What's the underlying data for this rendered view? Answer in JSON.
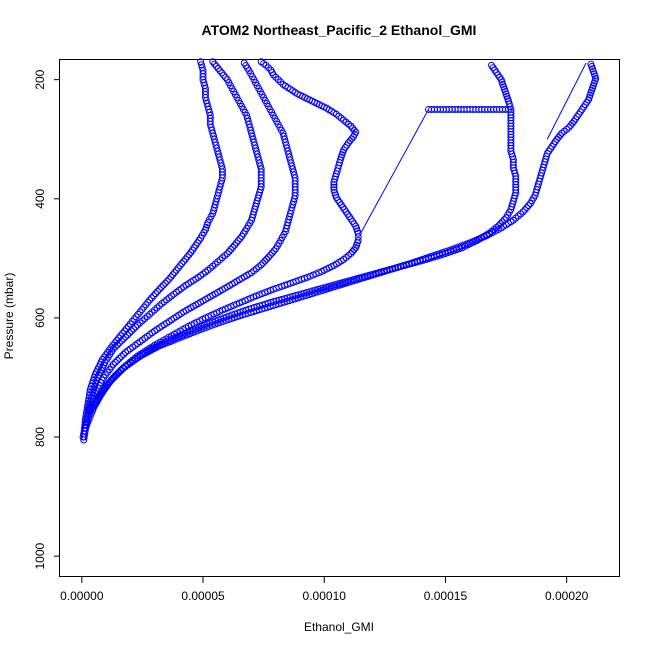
{
  "chart_data": {
    "type": "scatter",
    "title": "ATOM2 Northeast_Pacific_2 Ethanol_GMI",
    "xlabel": "Ethanol_GMI",
    "ylabel": "Pressure (mbar)",
    "xlim": [
      -9e-06,
      0.000222
    ],
    "ylim": [
      1035,
      167
    ],
    "y_reversed": true,
    "x_ticks": [
      0.0,
      5e-05,
      0.0001,
      0.00015,
      0.0002
    ],
    "x_tick_labels": [
      "0.00000",
      "0.00005",
      "0.00010",
      "0.00015",
      "0.00020"
    ],
    "y_ticks": [
      200,
      400,
      600,
      800,
      1000
    ],
    "y_tick_labels": [
      "200",
      "400",
      "600",
      "800",
      "1000"
    ],
    "grid": false,
    "marker": "open-circle",
    "color": "#0000ff",
    "series": [
      {
        "points": [
          [
            5e-07,
            800
          ],
          [
            1e-06,
            790
          ],
          [
            1.5e-06,
            770
          ],
          [
            2.5e-06,
            745
          ],
          [
            3.5e-06,
            720
          ],
          [
            5.5e-06,
            695
          ],
          [
            8.5e-06,
            670
          ],
          [
            1.2e-05,
            650
          ],
          [
            1.6e-05,
            630
          ],
          [
            2e-05,
            610
          ],
          [
            2.4e-05,
            590
          ],
          [
            2.8e-05,
            570
          ],
          [
            3.2e-05,
            552
          ],
          [
            3.6e-05,
            535
          ],
          [
            3.9e-05,
            520
          ],
          [
            4.2e-05,
            505
          ],
          [
            4.5e-05,
            490
          ],
          [
            4.7e-05,
            478
          ],
          [
            4.9e-05,
            466
          ],
          [
            5.1e-05,
            452
          ],
          [
            5.2e-05,
            440
          ],
          [
            5.4e-05,
            425
          ],
          [
            5.5e-05,
            410
          ],
          [
            5.6e-05,
            395
          ],
          [
            5.7e-05,
            380
          ],
          [
            5.8e-05,
            365
          ],
          [
            5.8e-05,
            350
          ],
          [
            5.7e-05,
            335
          ],
          [
            5.6e-05,
            320
          ],
          [
            5.5e-05,
            305
          ],
          [
            5.4e-05,
            290
          ],
          [
            5.3e-05,
            275
          ],
          [
            5.3e-05,
            260
          ],
          [
            5.2e-05,
            245
          ],
          [
            5.1e-05,
            230
          ],
          [
            5.1e-05,
            215
          ],
          [
            5e-05,
            200
          ],
          [
            5e-05,
            185
          ],
          [
            4.9e-05,
            170
          ]
        ]
      },
      {
        "points": [
          [
            8e-07,
            805
          ],
          [
            1.2e-06,
            795
          ],
          [
            2e-06,
            775
          ],
          [
            3e-06,
            750
          ],
          [
            4.5e-06,
            725
          ],
          [
            6.5e-06,
            700
          ],
          [
            9.5e-06,
            675
          ],
          [
            1.3e-05,
            652
          ],
          [
            1.8e-05,
            632
          ],
          [
            2.3e-05,
            612
          ],
          [
            2.8e-05,
            594
          ],
          [
            3.3e-05,
            576
          ],
          [
            3.8e-05,
            560
          ],
          [
            4.3e-05,
            545
          ],
          [
            4.8e-05,
            532
          ],
          [
            5.2e-05,
            520
          ],
          [
            5.6e-05,
            506
          ],
          [
            6e-05,
            492
          ],
          [
            6.3e-05,
            478
          ],
          [
            6.6e-05,
            463
          ],
          [
            6.8e-05,
            450
          ],
          [
            7e-05,
            436
          ],
          [
            7.1e-05,
            422
          ],
          [
            7.2e-05,
            408
          ],
          [
            7.3e-05,
            394
          ],
          [
            7.4e-05,
            380
          ],
          [
            7.4e-05,
            365
          ],
          [
            7.4e-05,
            350
          ],
          [
            7.3e-05,
            335
          ],
          [
            7.2e-05,
            320
          ],
          [
            7.1e-05,
            305
          ],
          [
            7e-05,
            290
          ],
          [
            6.9e-05,
            275
          ],
          [
            6.8e-05,
            260
          ],
          [
            6.6e-05,
            245
          ],
          [
            6.4e-05,
            230
          ],
          [
            6.2e-05,
            215
          ],
          [
            6e-05,
            200
          ],
          [
            5.7e-05,
            185
          ],
          [
            5.4e-05,
            170
          ]
        ]
      },
      {
        "points": [
          [
            1.5e-06,
            780
          ],
          [
            2.5e-06,
            765
          ],
          [
            4e-06,
            745
          ],
          [
            6e-06,
            722
          ],
          [
            9e-06,
            700
          ],
          [
            1.3e-05,
            678
          ],
          [
            1.8e-05,
            658
          ],
          [
            2.4e-05,
            640
          ],
          [
            3e-05,
            622
          ],
          [
            3.6e-05,
            606
          ],
          [
            4.2e-05,
            590
          ],
          [
            4.8e-05,
            576
          ],
          [
            5.4e-05,
            562
          ],
          [
            6e-05,
            548
          ],
          [
            6.5e-05,
            536
          ],
          [
            7e-05,
            524
          ],
          [
            7.4e-05,
            511
          ],
          [
            7.7e-05,
            498
          ],
          [
            8e-05,
            484
          ],
          [
            8.2e-05,
            470
          ],
          [
            8.4e-05,
            455
          ],
          [
            8.5e-05,
            440
          ],
          [
            8.6e-05,
            425
          ],
          [
            8.7e-05,
            410
          ],
          [
            8.8e-05,
            395
          ],
          [
            8.8e-05,
            380
          ],
          [
            8.8e-05,
            365
          ],
          [
            8.7e-05,
            350
          ],
          [
            8.6e-05,
            335
          ],
          [
            8.5e-05,
            320
          ],
          [
            8.4e-05,
            305
          ],
          [
            8.3e-05,
            290
          ],
          [
            8.1e-05,
            275
          ],
          [
            7.9e-05,
            260
          ],
          [
            7.7e-05,
            245
          ],
          [
            7.5e-05,
            230
          ],
          [
            7.3e-05,
            215
          ],
          [
            7.1e-05,
            200
          ],
          [
            6.9e-05,
            185
          ],
          [
            6.7e-05,
            172
          ]
        ]
      },
      {
        "points": [
          [
            1.5e-06,
            785
          ],
          [
            3e-06,
            770
          ],
          [
            5e-06,
            750
          ],
          [
            8e-06,
            728
          ],
          [
            1.2e-05,
            705
          ],
          [
            1.7e-05,
            684
          ],
          [
            2.3e-05,
            664
          ],
          [
            3e-05,
            646
          ],
          [
            3.7e-05,
            630
          ],
          [
            4.4e-05,
            614
          ],
          [
            5.1e-05,
            600
          ],
          [
            5.8e-05,
            587
          ],
          [
            6.5e-05,
            575
          ],
          [
            7.2e-05,
            563
          ],
          [
            7.9e-05,
            552
          ],
          [
            8.6e-05,
            542
          ],
          [
            9.3e-05,
            532
          ],
          [
            9.9e-05,
            522
          ],
          [
            0.000104,
            512
          ],
          [
            0.000108,
            502
          ],
          [
            0.000111,
            492
          ],
          [
            0.000113,
            482
          ],
          [
            0.000114,
            470
          ],
          [
            0.000114,
            458
          ],
          [
            0.000113,
            446
          ],
          [
            0.000111,
            434
          ],
          [
            0.000109,
            422
          ],
          [
            0.000107,
            410
          ],
          [
            0.000105,
            398
          ],
          [
            0.000104,
            385
          ],
          [
            0.000104,
            372
          ],
          [
            0.000105,
            358
          ],
          [
            0.000106,
            344
          ],
          [
            0.000107,
            330
          ],
          [
            0.000108,
            318
          ],
          [
            0.00011,
            306
          ],
          [
            0.000112,
            296
          ],
          [
            0.000113,
            288
          ],
          [
            0.000111,
            278
          ],
          [
            0.000108,
            268
          ],
          [
            0.000105,
            258
          ],
          [
            0.000101,
            248
          ],
          [
            9.7e-05,
            240
          ],
          [
            9.3e-05,
            232
          ],
          [
            8.9e-05,
            224
          ],
          [
            8.6e-05,
            216
          ],
          [
            8.3e-05,
            208
          ],
          [
            8.1e-05,
            200
          ],
          [
            7.9e-05,
            192
          ],
          [
            7.8e-05,
            184
          ],
          [
            7.6e-05,
            176
          ],
          [
            7.4e-05,
            170
          ]
        ]
      },
      {
        "points": [
          [
            3e-06,
            760
          ],
          [
            5e-06,
            745
          ],
          [
            8e-06,
            725
          ],
          [
            1.2e-05,
            705
          ],
          [
            1.7e-05,
            685
          ],
          [
            2.3e-05,
            667
          ],
          [
            3e-05,
            650
          ],
          [
            3.8e-05,
            634
          ],
          [
            4.6e-05,
            620
          ],
          [
            5.4e-05,
            607
          ],
          [
            6.2e-05,
            595
          ],
          [
            7e-05,
            584
          ],
          [
            7.8e-05,
            574
          ],
          [
            8.6e-05,
            565
          ],
          [
            9.4e-05,
            556
          ],
          [
            0.000102,
            547
          ],
          [
            0.00011,
            538
          ],
          [
            0.000118,
            529
          ],
          [
            0.000126,
            520
          ],
          [
            0.000134,
            511
          ],
          [
            0.000142,
            502
          ],
          [
            0.00015,
            492
          ],
          [
            0.000157,
            482
          ],
          [
            0.000163,
            470
          ],
          [
            0.000168,
            458
          ],
          [
            0.000172,
            445
          ],
          [
            0.000175,
            432
          ],
          [
            0.000177,
            418
          ],
          [
            0.000178,
            404
          ],
          [
            0.000179,
            390
          ],
          [
            0.000179,
            376
          ],
          [
            0.000179,
            362
          ],
          [
            0.000178,
            348
          ],
          [
            0.000178,
            334
          ],
          [
            0.000177,
            320
          ],
          [
            0.000177,
            306
          ],
          [
            0.000177,
            292
          ],
          [
            0.000177,
            278
          ],
          [
            0.000177,
            264
          ],
          [
            0.000177,
            250
          ],
          [
            0.000176,
            236
          ],
          [
            0.000175,
            224
          ],
          [
            0.000174,
            212
          ],
          [
            0.000173,
            200
          ],
          [
            0.000171,
            188
          ],
          [
            0.000169,
            176
          ]
        ]
      },
      {
        "points": [
          [
            4.5e-06,
            750
          ],
          [
            7e-06,
            735
          ],
          [
            1e-05,
            715
          ],
          [
            1.4e-05,
            696
          ],
          [
            1.9e-05,
            678
          ],
          [
            2.5e-05,
            662
          ],
          [
            3.2e-05,
            647
          ],
          [
            4e-05,
            634
          ],
          [
            4.8e-05,
            621
          ],
          [
            5.6e-05,
            609
          ],
          [
            6.4e-05,
            598
          ],
          [
            7.2e-05,
            588
          ],
          [
            8e-05,
            578
          ],
          [
            8.8e-05,
            568
          ],
          [
            9.6e-05,
            558
          ],
          [
            0.000104,
            548
          ],
          [
            0.000112,
            538
          ],
          [
            0.00012,
            528
          ],
          [
            0.000128,
            518
          ],
          [
            0.000136,
            508
          ],
          [
            0.000144,
            497
          ],
          [
            0.000152,
            486
          ],
          [
            0.00016,
            474
          ],
          [
            0.000167,
            462
          ],
          [
            0.000173,
            449
          ],
          [
            0.000178,
            436
          ],
          [
            0.000182,
            422
          ],
          [
            0.000185,
            408
          ],
          [
            0.000187,
            394
          ],
          [
            0.000188,
            380
          ],
          [
            0.000189,
            366
          ],
          [
            0.00019,
            352
          ],
          [
            0.000191,
            338
          ],
          [
            0.000192,
            324
          ],
          [
            0.000194,
            312
          ],
          [
            0.000196,
            300
          ],
          [
            0.000198,
            290
          ],
          [
            0.000201,
            280
          ],
          [
            0.000203,
            270
          ],
          [
            0.000205,
            258
          ],
          [
            0.000207,
            246
          ],
          [
            0.000209,
            234
          ],
          [
            0.00021,
            222
          ],
          [
            0.000211,
            210
          ],
          [
            0.000212,
            198
          ],
          [
            0.000211,
            186
          ],
          [
            0.00021,
            174
          ]
        ]
      }
    ],
    "connectors": [
      [
        [
          0.000115,
          458
        ],
        [
          0.000143,
          250
        ]
      ],
      [
        [
          0.000192,
          300
        ],
        [
          0.000208,
          172
        ]
      ]
    ],
    "flat_segment": {
      "y": 250,
      "x_from": 0.000143,
      "x_to": 0.000176
    }
  }
}
